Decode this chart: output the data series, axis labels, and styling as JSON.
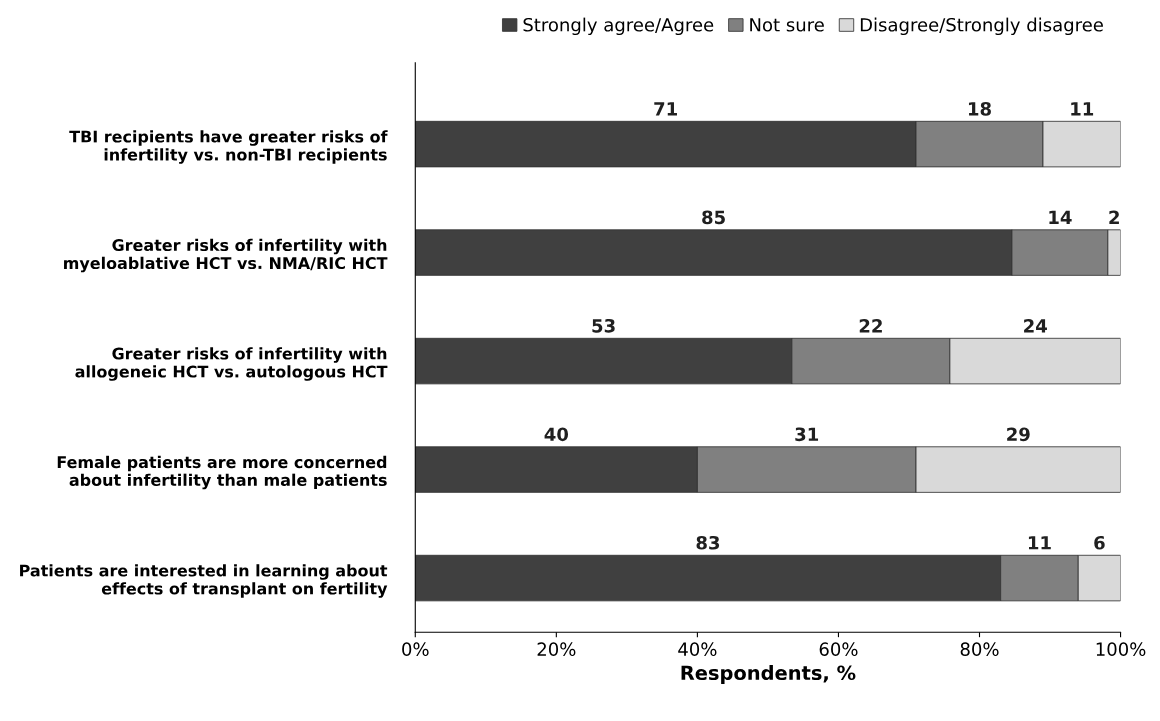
{
  "chart_data": {
    "type": "bar",
    "orientation": "horizontal",
    "stacked": true,
    "categories": [
      "TBI recipients have greater risks of\ninfertility vs. non-TBI recipients",
      "Greater risks of infertility with\nmyeloablative HCT vs. NMA/RIC HCT",
      "Greater risks of infertility with\nallogeneic HCT vs. autologous HCT",
      "Female patients are more concerned\nabout infertility than male patients",
      "Patients are interested in learning about\neffects of transplant on fertility"
    ],
    "series": [
      {
        "name": "Strongly agree/Agree",
        "color": "#404040",
        "values": [
          71,
          84.6,
          53.4,
          40,
          83
        ],
        "value_labels": [
          "71",
          "85",
          "53",
          "40",
          "83"
        ]
      },
      {
        "name": "Not sure",
        "color": "#808080",
        "values": [
          18,
          13.6,
          22.4,
          31,
          11
        ],
        "value_labels": [
          "18",
          "14",
          "22",
          "31",
          "11"
        ]
      },
      {
        "name": "Disagree/Strongly disagree",
        "color": "#d9d9d9",
        "values": [
          11,
          1.8,
          24.2,
          29,
          6
        ],
        "value_labels": [
          "11",
          "2",
          "24",
          "29",
          "6"
        ]
      }
    ],
    "xlim": [
      0,
      100
    ],
    "xticks": [
      {
        "value": 0,
        "label": "0%"
      },
      {
        "value": 20,
        "label": "20%"
      },
      {
        "value": 40,
        "label": "40%"
      },
      {
        "value": 60,
        "label": "60%"
      },
      {
        "value": 80,
        "label": "80%"
      },
      {
        "value": 100,
        "label": "100%"
      }
    ],
    "xlabel": "Respondents, %",
    "legend": "top",
    "grid": false
  }
}
